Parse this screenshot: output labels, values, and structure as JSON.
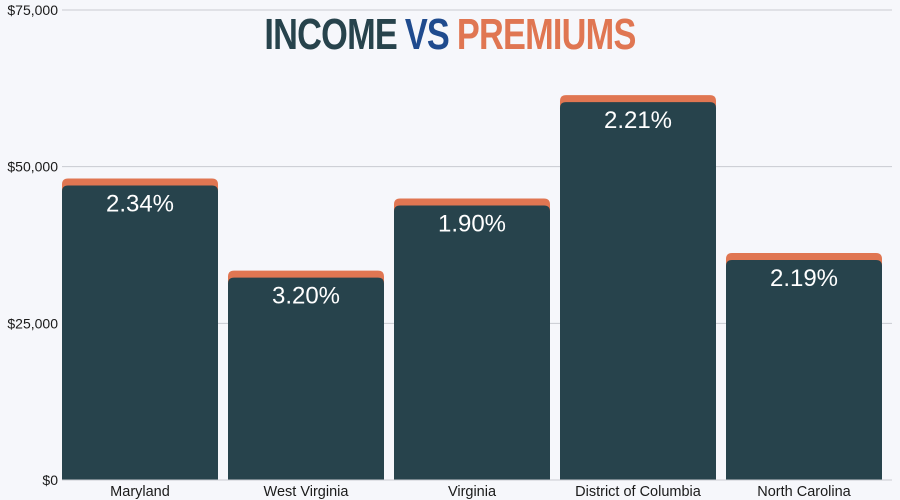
{
  "chart_data": {
    "type": "bar",
    "title_parts": [
      {
        "text": "INCOME",
        "color": "#27434c"
      },
      {
        "text": "VS",
        "color": "#1f4b8e"
      },
      {
        "text": "PREMIUMS",
        "color": "#e07652"
      }
    ],
    "categories": [
      "Maryland",
      "West Virginia",
      "Virginia",
      "District of Columbia",
      "North Carolina"
    ],
    "series": [
      {
        "values": [
          47000,
          32300,
          43800,
          60300,
          35100
        ],
        "color": "#27434c"
      }
    ],
    "premium_cap_color": "#e07652",
    "data_labels": [
      "2.34%",
      "3.20%",
      "1.90%",
      "2.21%",
      "2.19%"
    ],
    "ylim": [
      0,
      75000
    ],
    "y_ticks": [
      0,
      25000,
      50000,
      75000
    ],
    "y_tick_labels": [
      "$0",
      "$25,000",
      "$50,000",
      "$75,000"
    ],
    "grid": true,
    "legend": "none"
  }
}
